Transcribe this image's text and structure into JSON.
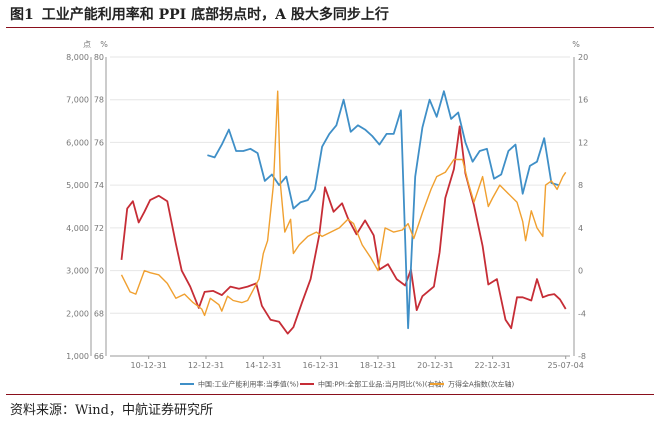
{
  "title": {
    "figure_no": "图1",
    "text": "工业产能利用率和 PPI 底部拐点时，A 股大多同步上行"
  },
  "source": "资料来源：Wind，中航证券研究所",
  "chart_data": {
    "type": "line",
    "grid": true,
    "legend_placement": "bottom",
    "x_tick_labels": [
      "10-12-31",
      "12-12-31",
      "14-12-31",
      "16-12-31",
      "18-12-31",
      "20-12-31",
      "22-12-31",
      "25-07-04"
    ],
    "axes": {
      "left_outer": {
        "unit": "点",
        "ticks": [
          "1,000",
          "2,000",
          "3,000",
          "4,000",
          "5,000",
          "6,000",
          "7,000",
          "8,000"
        ],
        "range": [
          1000,
          8000
        ]
      },
      "left_inner": {
        "unit": "%",
        "ticks": [
          "66",
          "68",
          "70",
          "72",
          "74",
          "76",
          "78",
          "80"
        ],
        "range": [
          66,
          80
        ]
      },
      "right": {
        "unit": "%",
        "ticks": [
          "-8",
          "-4",
          "0",
          "4",
          "8",
          "12",
          "16",
          "20"
        ],
        "range": [
          -8,
          20
        ]
      }
    },
    "series": [
      {
        "name": "中国:工业产能利用率:当季值(%)",
        "axis": "left_inner",
        "color": "#3f8fc7",
        "points": [
          [
            2013.0,
            75.4
          ],
          [
            2013.25,
            75.3
          ],
          [
            2013.5,
            75.9
          ],
          [
            2013.75,
            76.6
          ],
          [
            2014.0,
            75.6
          ],
          [
            2014.25,
            75.6
          ],
          [
            2014.5,
            75.7
          ],
          [
            2014.75,
            75.5
          ],
          [
            2015.0,
            74.2
          ],
          [
            2015.25,
            74.5
          ],
          [
            2015.5,
            74.0
          ],
          [
            2015.75,
            74.4
          ],
          [
            2016.0,
            72.9
          ],
          [
            2016.25,
            73.2
          ],
          [
            2016.5,
            73.3
          ],
          [
            2016.75,
            73.8
          ],
          [
            2017.0,
            75.8
          ],
          [
            2017.25,
            76.4
          ],
          [
            2017.5,
            76.8
          ],
          [
            2017.75,
            78.0
          ],
          [
            2018.0,
            76.5
          ],
          [
            2018.25,
            76.8
          ],
          [
            2018.5,
            76.6
          ],
          [
            2018.75,
            76.3
          ],
          [
            2019.0,
            75.9
          ],
          [
            2019.25,
            76.4
          ],
          [
            2019.5,
            76.4
          ],
          [
            2019.75,
            77.5
          ],
          [
            2020.0,
            67.3
          ],
          [
            2020.25,
            74.4
          ],
          [
            2020.5,
            76.7
          ],
          [
            2020.75,
            78.0
          ],
          [
            2021.0,
            77.2
          ],
          [
            2021.25,
            78.4
          ],
          [
            2021.5,
            77.1
          ],
          [
            2021.75,
            77.4
          ],
          [
            2022.0,
            76.0
          ],
          [
            2022.25,
            75.1
          ],
          [
            2022.5,
            75.6
          ],
          [
            2022.75,
            75.7
          ],
          [
            2023.0,
            74.3
          ],
          [
            2023.25,
            74.5
          ],
          [
            2023.5,
            75.6
          ],
          [
            2023.75,
            75.9
          ],
          [
            2024.0,
            73.6
          ],
          [
            2024.25,
            74.9
          ],
          [
            2024.5,
            75.1
          ],
          [
            2024.75,
            76.2
          ],
          [
            2025.0,
            74.1
          ],
          [
            2025.25,
            74.0
          ]
        ]
      },
      {
        "name": "中国:PPI:全部工业品:当月同比(%)(右轴)",
        "axis": "right",
        "color": "#c62d36",
        "points": [
          [
            2010.0,
            1.0
          ],
          [
            2010.2,
            5.8
          ],
          [
            2010.4,
            6.5
          ],
          [
            2010.6,
            4.5
          ],
          [
            2010.8,
            5.5
          ],
          [
            2011.0,
            6.6
          ],
          [
            2011.3,
            7.0
          ],
          [
            2011.6,
            6.5
          ],
          [
            2011.9,
            2.5
          ],
          [
            2012.1,
            0.0
          ],
          [
            2012.4,
            -1.5
          ],
          [
            2012.7,
            -3.5
          ],
          [
            2012.9,
            -2.0
          ],
          [
            2013.2,
            -1.9
          ],
          [
            2013.5,
            -2.3
          ],
          [
            2013.8,
            -1.5
          ],
          [
            2014.1,
            -1.7
          ],
          [
            2014.4,
            -1.5
          ],
          [
            2014.7,
            -1.2
          ],
          [
            2014.9,
            -3.3
          ],
          [
            2015.2,
            -4.6
          ],
          [
            2015.5,
            -4.8
          ],
          [
            2015.8,
            -5.9
          ],
          [
            2016.0,
            -5.3
          ],
          [
            2016.3,
            -3.0
          ],
          [
            2016.6,
            -0.8
          ],
          [
            2016.9,
            3.3
          ],
          [
            2017.1,
            7.8
          ],
          [
            2017.4,
            5.5
          ],
          [
            2017.7,
            6.3
          ],
          [
            2017.9,
            4.9
          ],
          [
            2018.2,
            3.4
          ],
          [
            2018.5,
            4.7
          ],
          [
            2018.8,
            3.3
          ],
          [
            2019.0,
            0.1
          ],
          [
            2019.3,
            0.6
          ],
          [
            2019.6,
            -0.8
          ],
          [
            2019.9,
            -1.4
          ],
          [
            2020.1,
            0.1
          ],
          [
            2020.3,
            -3.7
          ],
          [
            2020.5,
            -2.4
          ],
          [
            2020.9,
            -1.5
          ],
          [
            2021.1,
            1.7
          ],
          [
            2021.3,
            6.8
          ],
          [
            2021.6,
            9.5
          ],
          [
            2021.8,
            13.5
          ],
          [
            2022.0,
            9.1
          ],
          [
            2022.3,
            6.1
          ],
          [
            2022.6,
            2.3
          ],
          [
            2022.8,
            -1.3
          ],
          [
            2023.1,
            -0.8
          ],
          [
            2023.4,
            -4.6
          ],
          [
            2023.6,
            -5.4
          ],
          [
            2023.8,
            -2.5
          ],
          [
            2024.0,
            -2.5
          ],
          [
            2024.3,
            -2.8
          ],
          [
            2024.5,
            -0.8
          ],
          [
            2024.7,
            -2.5
          ],
          [
            2024.9,
            -2.3
          ],
          [
            2025.1,
            -2.2
          ],
          [
            2025.3,
            -2.7
          ],
          [
            2025.5,
            -3.6
          ]
        ]
      },
      {
        "name": "万得全A指数(次左轴)",
        "axis": "left_outer",
        "color": "#f0a030",
        "points": [
          [
            2010.0,
            2900
          ],
          [
            2010.3,
            2500
          ],
          [
            2010.5,
            2450
          ],
          [
            2010.8,
            3000
          ],
          [
            2011.0,
            2950
          ],
          [
            2011.3,
            2900
          ],
          [
            2011.6,
            2700
          ],
          [
            2011.9,
            2350
          ],
          [
            2012.2,
            2450
          ],
          [
            2012.5,
            2250
          ],
          [
            2012.8,
            2100
          ],
          [
            2012.9,
            1950
          ],
          [
            2013.1,
            2350
          ],
          [
            2013.4,
            2200
          ],
          [
            2013.5,
            2050
          ],
          [
            2013.7,
            2400
          ],
          [
            2013.9,
            2300
          ],
          [
            2014.2,
            2250
          ],
          [
            2014.4,
            2300
          ],
          [
            2014.6,
            2550
          ],
          [
            2014.8,
            2800
          ],
          [
            2014.95,
            3400
          ],
          [
            2015.1,
            3700
          ],
          [
            2015.3,
            5000
          ],
          [
            2015.45,
            7200
          ],
          [
            2015.55,
            5000
          ],
          [
            2015.7,
            3900
          ],
          [
            2015.9,
            4200
          ],
          [
            2016.0,
            3400
          ],
          [
            2016.2,
            3600
          ],
          [
            2016.5,
            3800
          ],
          [
            2016.8,
            3900
          ],
          [
            2017.0,
            3800
          ],
          [
            2017.3,
            3900
          ],
          [
            2017.6,
            4000
          ],
          [
            2017.9,
            4200
          ],
          [
            2018.1,
            4100
          ],
          [
            2018.4,
            3600
          ],
          [
            2018.7,
            3300
          ],
          [
            2018.95,
            3000
          ],
          [
            2019.2,
            4000
          ],
          [
            2019.5,
            3900
          ],
          [
            2019.8,
            3950
          ],
          [
            2020.0,
            4100
          ],
          [
            2020.2,
            3750
          ],
          [
            2020.5,
            4350
          ],
          [
            2020.8,
            4900
          ],
          [
            2021.0,
            5200
          ],
          [
            2021.3,
            5300
          ],
          [
            2021.6,
            5600
          ],
          [
            2021.9,
            5600
          ],
          [
            2022.1,
            5050
          ],
          [
            2022.3,
            4600
          ],
          [
            2022.6,
            5200
          ],
          [
            2022.8,
            4500
          ],
          [
            2022.95,
            4700
          ],
          [
            2023.2,
            5000
          ],
          [
            2023.5,
            4800
          ],
          [
            2023.8,
            4600
          ],
          [
            2024.0,
            4150
          ],
          [
            2024.1,
            3700
          ],
          [
            2024.3,
            4400
          ],
          [
            2024.5,
            4000
          ],
          [
            2024.7,
            3800
          ],
          [
            2024.8,
            5000
          ],
          [
            2025.0,
            5100
          ],
          [
            2025.2,
            4900
          ],
          [
            2025.4,
            5200
          ],
          [
            2025.5,
            5300
          ]
        ]
      }
    ]
  }
}
